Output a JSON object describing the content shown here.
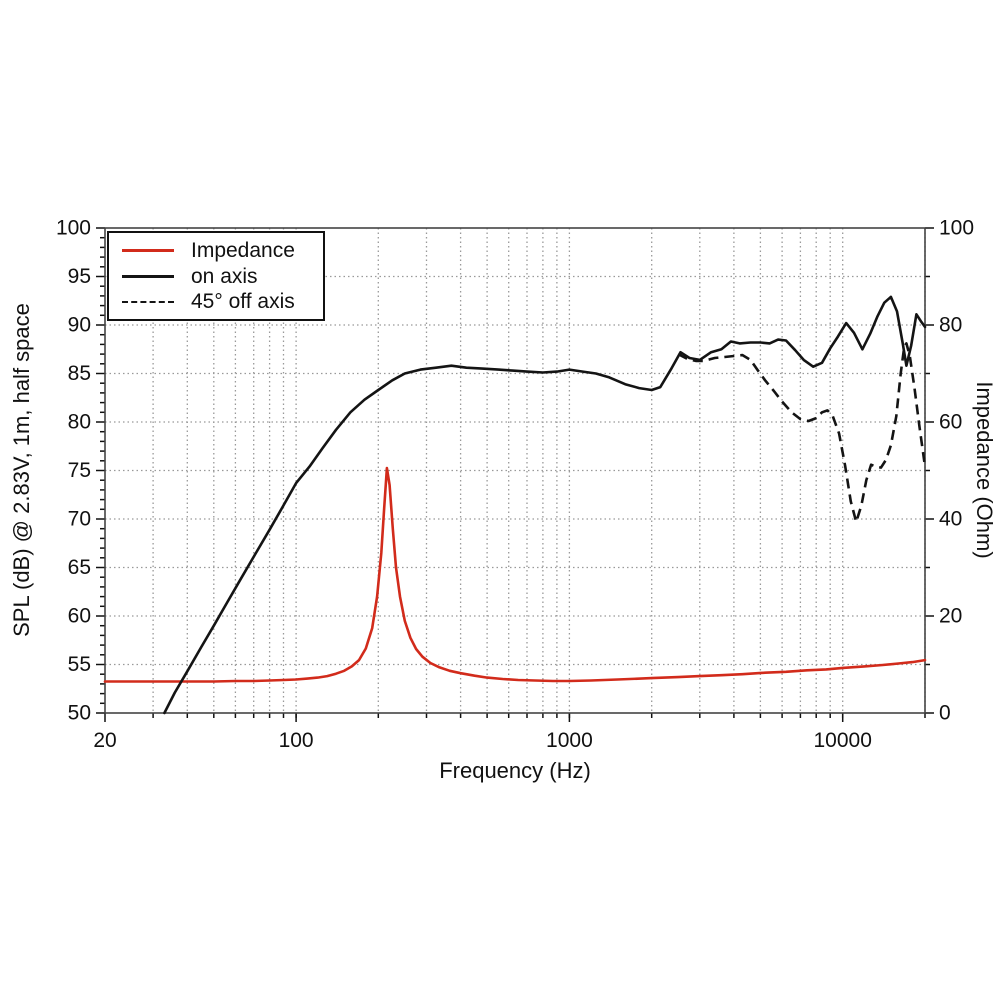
{
  "figure": {
    "background": "#ffffff"
  },
  "chart_data": {
    "type": "line",
    "title": "",
    "x_label": "Frequency (Hz)",
    "x_scale": "log",
    "x_range": [
      20,
      20000
    ],
    "x_major_ticks": [
      20,
      100,
      1000,
      10000
    ],
    "y_left": {
      "label": "SPL (dB) @ 2.83V, 1m, half space",
      "range": [
        50,
        100
      ],
      "major_step": 5,
      "minor_step": 1
    },
    "y_right": {
      "label": "Impedance (Ohm)",
      "range": [
        0,
        100
      ],
      "major_step": 20,
      "minor_step": 10
    },
    "grid": {
      "shown": true,
      "color": "#999999",
      "style": "dotted"
    },
    "legend": {
      "position": "top-left",
      "items": [
        {
          "label": "Impedance",
          "style": "solid",
          "color": "#d22b1b"
        },
        {
          "label": "on axis",
          "style": "solid",
          "color": "#141414"
        },
        {
          "label": "45° off axis",
          "style": "dashed",
          "color": "#141414"
        }
      ]
    },
    "series": [
      {
        "name": "Impedance",
        "axis": "right",
        "unit": "Ohm",
        "color": "#d22b1b",
        "dash": null,
        "points": [
          [
            20,
            6.5
          ],
          [
            30,
            6.5
          ],
          [
            40,
            6.5
          ],
          [
            50,
            6.5
          ],
          [
            60,
            6.6
          ],
          [
            70,
            6.6
          ],
          [
            80,
            6.7
          ],
          [
            90,
            6.8
          ],
          [
            100,
            6.9
          ],
          [
            110,
            7.1
          ],
          [
            120,
            7.3
          ],
          [
            130,
            7.6
          ],
          [
            140,
            8.1
          ],
          [
            150,
            8.7
          ],
          [
            160,
            9.6
          ],
          [
            170,
            10.9
          ],
          [
            180,
            13.3
          ],
          [
            190,
            17.5
          ],
          [
            198,
            24
          ],
          [
            205,
            33
          ],
          [
            210,
            42
          ],
          [
            215,
            50.5
          ],
          [
            220,
            47
          ],
          [
            226,
            38
          ],
          [
            232,
            30
          ],
          [
            240,
            24
          ],
          [
            250,
            19
          ],
          [
            262,
            15.5
          ],
          [
            275,
            13.2
          ],
          [
            290,
            11.6
          ],
          [
            310,
            10.3
          ],
          [
            335,
            9.4
          ],
          [
            365,
            8.7
          ],
          [
            400,
            8.2
          ],
          [
            450,
            7.7
          ],
          [
            500,
            7.3
          ],
          [
            570,
            7.0
          ],
          [
            650,
            6.8
          ],
          [
            750,
            6.7
          ],
          [
            870,
            6.6
          ],
          [
            1000,
            6.6
          ],
          [
            1200,
            6.7
          ],
          [
            1500,
            6.9
          ],
          [
            2000,
            7.2
          ],
          [
            2500,
            7.4
          ],
          [
            3000,
            7.6
          ],
          [
            3600,
            7.8
          ],
          [
            4300,
            8.0
          ],
          [
            5200,
            8.3
          ],
          [
            6200,
            8.5
          ],
          [
            7400,
            8.8
          ],
          [
            8700,
            9.0
          ],
          [
            10000,
            9.3
          ],
          [
            12000,
            9.6
          ],
          [
            14000,
            9.9
          ],
          [
            16000,
            10.2
          ],
          [
            18000,
            10.5
          ],
          [
            20000,
            10.9
          ]
        ]
      },
      {
        "name": "on axis",
        "axis": "left",
        "unit": "dB",
        "color": "#141414",
        "dash": null,
        "points": [
          [
            33,
            50
          ],
          [
            36,
            52.1
          ],
          [
            40,
            54.3
          ],
          [
            45,
            56.8
          ],
          [
            50,
            59
          ],
          [
            56,
            61.4
          ],
          [
            63,
            63.9
          ],
          [
            71,
            66.4
          ],
          [
            80,
            68.9
          ],
          [
            90,
            71.4
          ],
          [
            100,
            73.7
          ],
          [
            112,
            75.4
          ],
          [
            125,
            77.3
          ],
          [
            140,
            79.2
          ],
          [
            158,
            81
          ],
          [
            178,
            82.3
          ],
          [
            200,
            83.3
          ],
          [
            225,
            84.3
          ],
          [
            250,
            85
          ],
          [
            285,
            85.4
          ],
          [
            325,
            85.6
          ],
          [
            370,
            85.8
          ],
          [
            420,
            85.6
          ],
          [
            480,
            85.5
          ],
          [
            550,
            85.4
          ],
          [
            620,
            85.3
          ],
          [
            700,
            85.2
          ],
          [
            800,
            85.1
          ],
          [
            900,
            85.2
          ],
          [
            1000,
            85.4
          ],
          [
            1120,
            85.2
          ],
          [
            1250,
            85
          ],
          [
            1400,
            84.6
          ],
          [
            1600,
            83.9
          ],
          [
            1800,
            83.5
          ],
          [
            2000,
            83.3
          ],
          [
            2150,
            83.6
          ],
          [
            2350,
            85.4
          ],
          [
            2550,
            87.2
          ],
          [
            2750,
            86.6
          ],
          [
            3000,
            86.4
          ],
          [
            3300,
            87.2
          ],
          [
            3600,
            87.5
          ],
          [
            3900,
            88.3
          ],
          [
            4200,
            88.1
          ],
          [
            4600,
            88.2
          ],
          [
            5000,
            88.2
          ],
          [
            5400,
            88.1
          ],
          [
            5800,
            88.5
          ],
          [
            6200,
            88.4
          ],
          [
            6700,
            87.4
          ],
          [
            7200,
            86.4
          ],
          [
            7800,
            85.7
          ],
          [
            8400,
            86.1
          ],
          [
            9000,
            87.6
          ],
          [
            9600,
            88.8
          ],
          [
            10300,
            90.2
          ],
          [
            11000,
            89.2
          ],
          [
            11800,
            87.5
          ],
          [
            12600,
            89.1
          ],
          [
            13400,
            90.9
          ],
          [
            14200,
            92.3
          ],
          [
            15000,
            92.9
          ],
          [
            15800,
            91.4
          ],
          [
            16600,
            88
          ],
          [
            17100,
            85.8
          ],
          [
            17800,
            87.9
          ],
          [
            18600,
            91.1
          ],
          [
            19300,
            90.4
          ],
          [
            20000,
            89.8
          ]
        ]
      },
      {
        "name": "45° off axis",
        "axis": "left",
        "unit": "dB",
        "color": "#141414",
        "dash": [
          10,
          6
        ],
        "points": [
          [
            2500,
            87.0
          ],
          [
            2700,
            86.5
          ],
          [
            2900,
            86.3
          ],
          [
            3100,
            86.3
          ],
          [
            3400,
            86.6
          ],
          [
            3700,
            86.7
          ],
          [
            4000,
            86.8
          ],
          [
            4300,
            86.9
          ],
          [
            4600,
            86.4
          ],
          [
            4900,
            85.3
          ],
          [
            5200,
            84.3
          ],
          [
            5600,
            83.2
          ],
          [
            6000,
            82.1
          ],
          [
            6500,
            81.0
          ],
          [
            7000,
            80.3
          ],
          [
            7500,
            80.1
          ],
          [
            8000,
            80.4
          ],
          [
            8400,
            81.0
          ],
          [
            8800,
            81.2
          ],
          [
            9200,
            80.6
          ],
          [
            9700,
            78.8
          ],
          [
            10200,
            75.5
          ],
          [
            10700,
            71.8
          ],
          [
            11200,
            69.7
          ],
          [
            11700,
            71.4
          ],
          [
            12200,
            74.0
          ],
          [
            12700,
            75.6
          ],
          [
            13200,
            75.4
          ],
          [
            13800,
            75.3
          ],
          [
            14400,
            76.1
          ],
          [
            15000,
            77.6
          ],
          [
            15700,
            80.6
          ],
          [
            16300,
            85.0
          ],
          [
            16800,
            87.8
          ],
          [
            17100,
            88.1
          ],
          [
            17600,
            86.8
          ],
          [
            18300,
            83.5
          ],
          [
            19100,
            79.5
          ],
          [
            20000,
            75.4
          ]
        ]
      }
    ]
  }
}
